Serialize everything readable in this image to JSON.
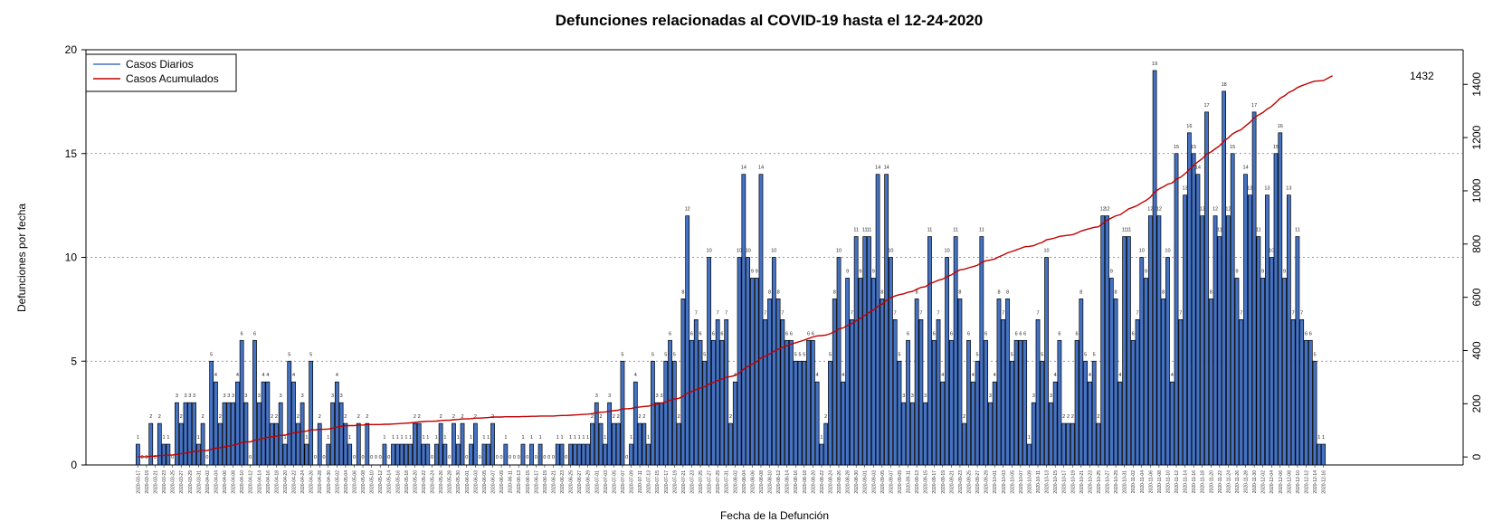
{
  "chart_data": {
    "type": "bar",
    "title": "Defunciones relacionadas al COVID-19 hasta el 12-24-2020",
    "xlabel": "Fecha de la Defunción",
    "ylabel": "Defunciones por fecha",
    "ylim": [
      0,
      20
    ],
    "y_ticks": [
      0,
      5,
      10,
      15,
      20
    ],
    "y2lim": [
      -30,
      1530
    ],
    "y2_ticks": [
      0,
      200,
      400,
      600,
      800,
      1000,
      1200,
      1400
    ],
    "grid": "horizontal dotted at 5, 10, 15",
    "legend_position": "top-left",
    "start_date": "2020-03-17",
    "end_date": "2020-12-24",
    "series": [
      {
        "name": "Casos Diarios",
        "color": "#4472c4",
        "values": [
          1,
          0,
          0,
          2,
          0,
          2,
          1,
          1,
          0,
          3,
          2,
          3,
          3,
          3,
          1,
          2,
          0,
          5,
          4,
          2,
          3,
          3,
          3,
          4,
          6,
          3,
          0,
          6,
          3,
          4,
          4,
          2,
          2,
          3,
          1,
          5,
          4,
          2,
          3,
          1,
          5,
          0,
          2,
          0,
          1,
          3,
          4,
          3,
          2,
          1,
          0,
          2,
          0,
          2,
          0,
          0,
          0,
          1,
          0,
          1,
          1,
          1,
          1,
          1,
          2,
          2,
          1,
          1,
          0,
          1,
          2,
          1,
          0,
          2,
          1,
          2,
          0,
          1,
          2,
          0,
          1,
          1,
          2,
          0,
          0,
          1,
          0,
          0,
          0,
          1,
          0,
          1,
          0,
          1,
          0,
          0,
          0,
          1,
          1,
          0,
          1,
          1,
          1,
          1,
          1,
          2,
          3,
          2,
          1,
          3,
          2,
          2,
          5,
          0,
          1,
          4,
          2,
          2,
          1,
          5,
          3,
          3,
          5,
          6,
          5,
          2,
          8,
          12,
          6,
          7,
          6,
          5,
          10,
          6,
          7,
          6,
          7,
          2,
          4,
          10,
          14,
          10,
          9,
          9,
          14,
          7,
          8,
          10,
          8,
          7,
          6,
          6,
          5,
          5,
          5,
          6,
          6,
          4,
          1,
          2,
          5,
          8,
          10,
          4,
          9,
          7,
          11,
          9,
          11,
          11,
          9,
          14,
          8,
          14,
          10,
          7,
          5,
          3,
          6,
          3,
          8,
          7,
          3,
          11,
          6,
          7,
          4,
          10,
          6,
          11,
          8,
          2,
          6,
          4,
          5,
          11,
          6,
          3,
          4,
          8,
          7,
          8,
          5,
          6,
          6,
          6,
          1,
          3,
          7,
          5,
          10,
          3,
          4,
          6,
          2,
          2,
          2,
          6,
          8,
          5,
          4,
          5,
          2,
          12,
          12,
          9,
          8,
          4,
          11,
          11,
          6,
          7,
          10,
          9,
          12,
          19,
          12,
          8,
          10,
          4,
          15,
          7,
          13,
          16,
          15,
          14,
          12,
          17,
          8,
          12,
          11,
          18,
          12,
          15,
          9,
          7,
          14,
          13,
          17,
          11,
          9,
          13,
          10,
          15,
          16,
          9,
          13,
          7,
          11,
          7,
          6,
          6,
          5,
          1,
          1
        ]
      },
      {
        "name": "Casos Acumulados",
        "color": "#c00000",
        "final_value": 1432
      }
    ]
  }
}
